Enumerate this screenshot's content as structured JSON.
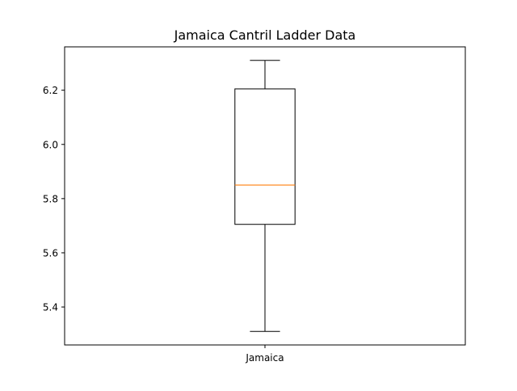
{
  "chart_data": {
    "type": "box",
    "title": "Jamaica Cantril Ladder Data",
    "xlabel": "",
    "ylabel": "",
    "categories": [
      "Jamaica"
    ],
    "boxes": [
      {
        "category": "Jamaica",
        "whisker_low": 5.31,
        "q1": 5.705,
        "median": 5.85,
        "q3": 6.205,
        "whisker_high": 6.31
      }
    ],
    "ylim": [
      5.26,
      6.36
    ],
    "y_ticks": [
      5.4,
      5.6,
      5.8,
      6.0,
      6.2
    ],
    "y_tick_labels": [
      "5.4",
      "5.6",
      "5.8",
      "6.0",
      "6.2"
    ],
    "grid": false,
    "colors": {
      "box": "#000000",
      "median": "#ff7f0e",
      "axes": "#000000"
    }
  }
}
